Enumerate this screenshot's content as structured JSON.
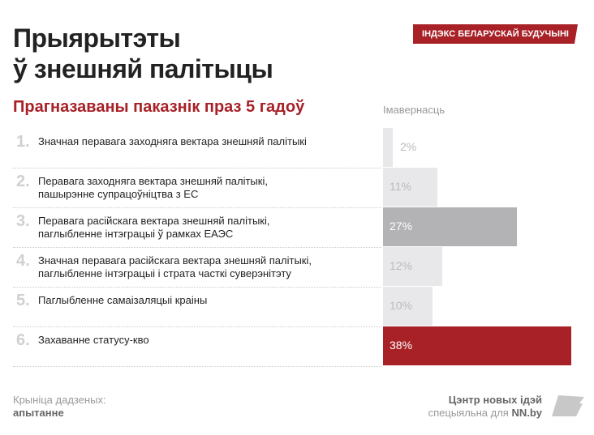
{
  "header": {
    "title_line1": "Прыярытэты",
    "title_line2": "ў знешняй палітыцы",
    "badge": "ІНДЭКС БЕЛАРУСКАЙ БУДУЧЫНІ"
  },
  "chart_data": {
    "type": "bar",
    "title": "Прагназаваны паказнік праз 5 гадоў",
    "ylabel": "Імавернасць",
    "categories": [
      "Значная перавага заходняга вектара знешняй палітыкі",
      "Перавага заходняга вектара знешняй палітыкі, пашырэнне супрацоўніцтва з ЕС",
      "Перавага расійскага вектара знешняй палітыкі, паглыбленне інтэграцыі ў рамках ЕАЭС",
      "Значная перавага расійскага вектара знешняй палітыкі, паглыбленне інтэграцыі і страта часткі суверэнітэту",
      "Паглыбленне самаізаляцыі краіны",
      "Захаванне статусу-кво"
    ],
    "category_lines": [
      [
        "Значная перавага заходняга вектара знешняй палітыкі"
      ],
      [
        "Перавага заходняга вектара знешняй палітыкі,",
        "пашырэнне супрацоўніцтва з ЕС"
      ],
      [
        "Перавага расійскага вектара знешняй палітыкі,",
        "паглыбленне інтэграцыі ў рамках ЕАЭС"
      ],
      [
        "Значная перавага расійскага вектара знешняй палітыкі,",
        "паглыбленне інтэграцыі і страта часткі суверэнітэту"
      ],
      [
        "Паглыбленне самаізаляцыі краіны"
      ],
      [
        "Захаванне статусу-кво"
      ]
    ],
    "numbers": [
      "1.",
      "2.",
      "3.",
      "4.",
      "5.",
      "6."
    ],
    "values": [
      2,
      11,
      27,
      12,
      10,
      38
    ],
    "value_labels": [
      "2%",
      "11%",
      "27%",
      "12%",
      "10%",
      "38%"
    ],
    "colors": [
      "#e8e8ea",
      "#e8e8ea",
      "#b3b2b5",
      "#e8e8ea",
      "#e8e8ea",
      "#a82127"
    ],
    "label_colors": [
      "#bbbbbb",
      "#bbbbbb",
      "#ffffff",
      "#bbbbbb",
      "#bbbbbb",
      "#ffffff"
    ],
    "xlim": [
      0,
      38
    ]
  },
  "footer": {
    "source_label": "Крыніца дадзеных:",
    "source_value": "апытанне",
    "brand_line1": "Цэнтр новых ідэй",
    "brand_line2_prefix": "спецыяльна для ",
    "brand_line2_site": "NN.by"
  }
}
